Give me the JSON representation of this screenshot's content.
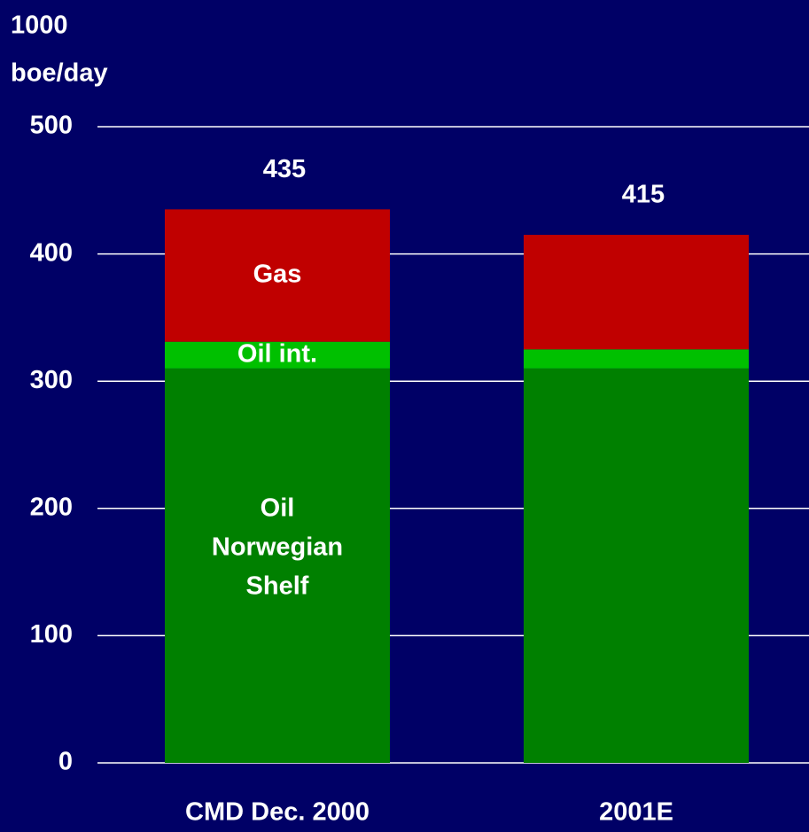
{
  "chart_data": {
    "type": "stacked_bar",
    "ylabel": [
      "1000",
      "boe/day"
    ],
    "categories": [
      "CMD Dec. 2000",
      "2001E"
    ],
    "series": [
      {
        "name": "Oil Norwegian Shelf",
        "color": "#008000",
        "values": [
          310,
          310
        ]
      },
      {
        "name": "Oil int.",
        "color": "#00c000",
        "values": [
          21,
          15
        ]
      },
      {
        "name": "Gas",
        "color": "#c00000",
        "values": [
          104,
          90
        ]
      }
    ],
    "totals": [
      435,
      415
    ],
    "ylim": [
      0,
      500
    ],
    "yticks": [
      0,
      100,
      200,
      300,
      400,
      500
    ],
    "grid": true
  }
}
